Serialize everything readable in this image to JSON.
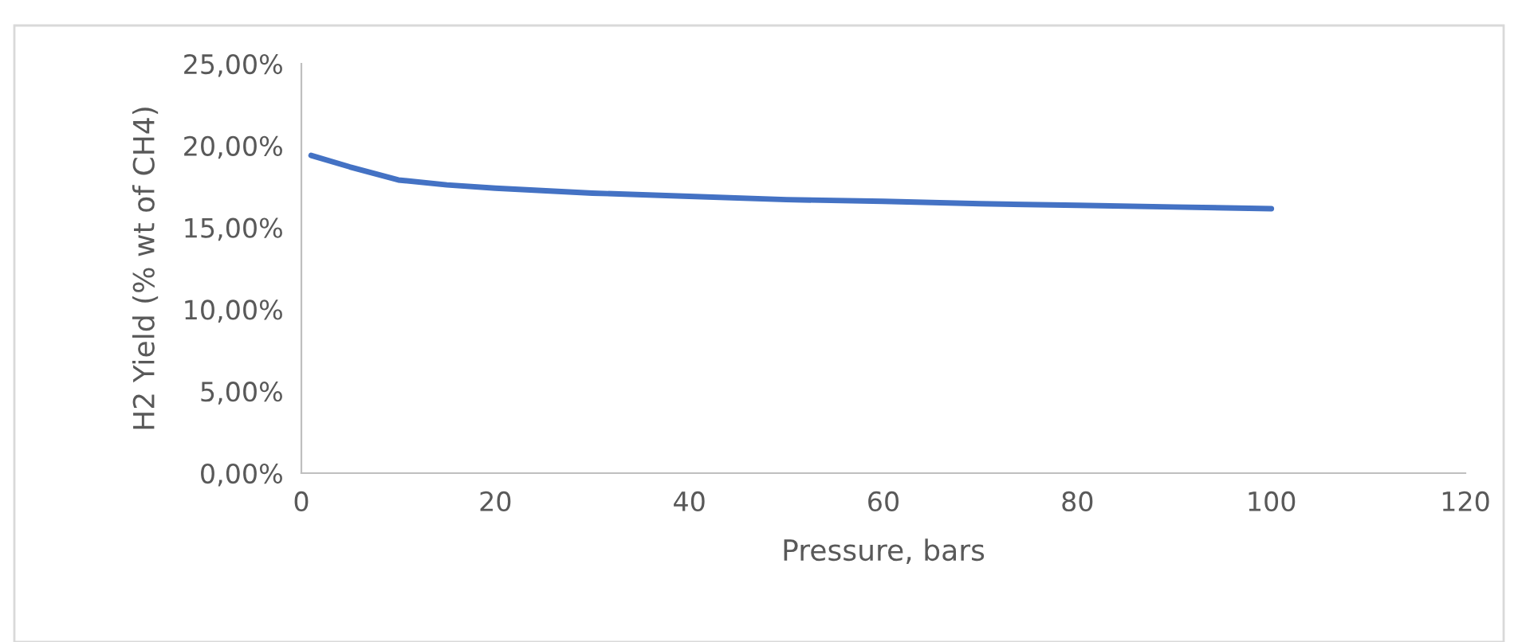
{
  "chart_data": {
    "type": "line",
    "xlabel": "Pressure, bars",
    "ylabel": "H2 Yield (% wt of CH4)",
    "x": [
      1,
      5,
      10,
      15,
      20,
      30,
      40,
      50,
      60,
      70,
      80,
      90,
      100
    ],
    "series": [
      {
        "color": "#4472c4",
        "values": [
          19.4,
          18.7,
          17.9,
          17.6,
          17.4,
          17.1,
          16.9,
          16.7,
          16.6,
          16.45,
          16.35,
          16.25,
          16.15
        ]
      }
    ],
    "xlim": [
      0,
      120
    ],
    "xticks": [
      0,
      20,
      40,
      60,
      80,
      100,
      120
    ],
    "ylim": [
      0,
      25
    ],
    "yticks": [
      {
        "value": 0,
        "label": "0,00%"
      },
      {
        "value": 5,
        "label": "5,00%"
      },
      {
        "value": 10,
        "label": "10,00%"
      },
      {
        "value": 15,
        "label": "15,00%"
      },
      {
        "value": 20,
        "label": "20,00%"
      },
      {
        "value": 25,
        "label": "25,00%"
      }
    ],
    "grid": false,
    "legend": false,
    "marker": "none",
    "line_style": "solid"
  }
}
